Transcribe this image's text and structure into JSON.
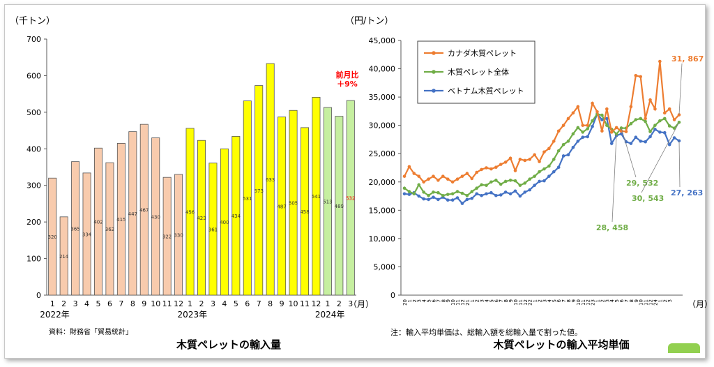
{
  "colors": {
    "bar_2022": "#f8cbad",
    "bar_2023": "#ffff00",
    "bar_2024": "#c6efa0",
    "bar_stroke": "#555555",
    "line_canada": "#ed7d31",
    "line_all": "#70ad47",
    "line_vietnam": "#4472c4",
    "highlight_red": "#ff0000",
    "tag_green": "#92d050"
  },
  "chart_data": [
    {
      "type": "bar",
      "title": "木質ペレットの輸入量",
      "ylabel": "（千トン）",
      "xlabel": "（月）",
      "source": "資料：財務省「貿易統計」",
      "ylim": [
        0,
        700
      ],
      "yticks": [
        "0",
        "100",
        "200",
        "300",
        "400",
        "500",
        "600",
        "700"
      ],
      "categories": [
        "1",
        "2",
        "3",
        "4",
        "5",
        "6",
        "7",
        "8",
        "9",
        "10",
        "11",
        "12",
        "1",
        "2",
        "3",
        "4",
        "5",
        "6",
        "7",
        "8",
        "9",
        "10",
        "11",
        "12",
        "1",
        "2",
        "3"
      ],
      "values": [
        320,
        214,
        365,
        334,
        402,
        362,
        415,
        447,
        467,
        430,
        322,
        330,
        456,
        423,
        361,
        400,
        434,
        531,
        573,
        633,
        487,
        505,
        458,
        541,
        513,
        489,
        532
      ],
      "year_labels": [
        {
          "label": "2022年",
          "start_index": 0
        },
        {
          "label": "2023年",
          "start_index": 12
        },
        {
          "label": "2024年",
          "start_index": 24
        }
      ],
      "annotation": {
        "line1": "前月比",
        "line2": "＋9%"
      },
      "grid": false,
      "legend": "none"
    },
    {
      "type": "line",
      "title": "木質ペレットの輸入平均単価",
      "ylabel": "（円/トン）",
      "xlabel": "（月）",
      "note": "注：輸入平均単価は、総輸入額を総輸入量で割った値。",
      "ylim": [
        0,
        45000
      ],
      "yticks": [
        "0",
        "5,000",
        "10,000",
        "15,000",
        "20,000",
        "25,000",
        "30,000",
        "35,000",
        "40,000",
        "45,000"
      ],
      "x_tick_labels": [
        "20",
        "1",
        "2",
        "3",
        "4",
        "5",
        "6",
        "7",
        "8",
        "9",
        "10",
        "11",
        "12",
        "21",
        "1",
        "2",
        "3",
        "4",
        "5",
        "6",
        "7",
        "8",
        "9",
        "10",
        "11",
        "12",
        "22",
        "1",
        "2",
        "3",
        "4",
        "5",
        "6",
        "7",
        "8",
        "9",
        "10",
        "11",
        "12",
        "23",
        "1",
        "2",
        "3",
        "4",
        "5",
        "6",
        "7",
        "8",
        "9",
        "10",
        "11",
        "12",
        "24",
        "1",
        "2",
        "3"
      ],
      "legend": "top-left",
      "grid": false,
      "series": [
        {
          "name": "カナダ木質ペレット",
          "values": [
            21000,
            22700,
            21500,
            21000,
            20000,
            20500,
            21000,
            20300,
            21000,
            20500,
            20000,
            20500,
            21000,
            21500,
            20600,
            21700,
            22200,
            22500,
            22300,
            22600,
            23100,
            23500,
            24200,
            22000,
            24000,
            23800,
            24000,
            24800,
            23600,
            25300,
            25900,
            27200,
            29000,
            30000,
            31200,
            32200,
            33300,
            30000,
            30000,
            33900,
            32400,
            29000,
            32900,
            28800,
            29600,
            29000,
            28900,
            33300,
            38800,
            38600,
            31200,
            34500,
            32900,
            41300,
            32200,
            32900,
            31000,
            31867
          ]
        },
        {
          "name": "木質ペレット全体",
          "values": [
            18900,
            18300,
            17900,
            19500,
            18200,
            17600,
            18200,
            18100,
            17600,
            17800,
            17900,
            18300,
            18000,
            17600,
            18300,
            18900,
            19500,
            19400,
            20000,
            20300,
            19600,
            20100,
            20300,
            20200,
            19400,
            19800,
            20500,
            21000,
            21800,
            22300,
            22800,
            24000,
            25500,
            26600,
            27200,
            28500,
            29600,
            28800,
            29400,
            30800,
            32000,
            31800,
            30000,
            29300,
            28458,
            29532,
            29500,
            30300,
            31000,
            31200,
            30700,
            28900,
            30000,
            30800,
            31200,
            29900,
            29500,
            30543
          ]
        },
        {
          "name": "ベトナム木質ペレット",
          "values": [
            17900,
            17800,
            18100,
            17500,
            17000,
            16900,
            17300,
            16900,
            17300,
            16800,
            16800,
            17200,
            16200,
            16900,
            17100,
            17900,
            17600,
            17900,
            18100,
            17600,
            17700,
            18200,
            17900,
            18400,
            17500,
            18200,
            18600,
            19400,
            20100,
            20200,
            21000,
            21800,
            22600,
            24600,
            24800,
            26100,
            27200,
            27900,
            28000,
            29800,
            32000,
            31000,
            31200,
            26800,
            28200,
            28500,
            27100,
            26800,
            27900,
            27200,
            27100,
            28000,
            29300,
            28800,
            28700,
            26600,
            27800,
            27263
          ]
        }
      ],
      "callouts": [
        {
          "text": "31, 867",
          "series": 0
        },
        {
          "text": "29, 532",
          "series": 1
        },
        {
          "text": "30, 543",
          "series": 1
        },
        {
          "text": "27, 263",
          "series": 2
        },
        {
          "text": "28, 458",
          "series": 1
        }
      ]
    }
  ]
}
